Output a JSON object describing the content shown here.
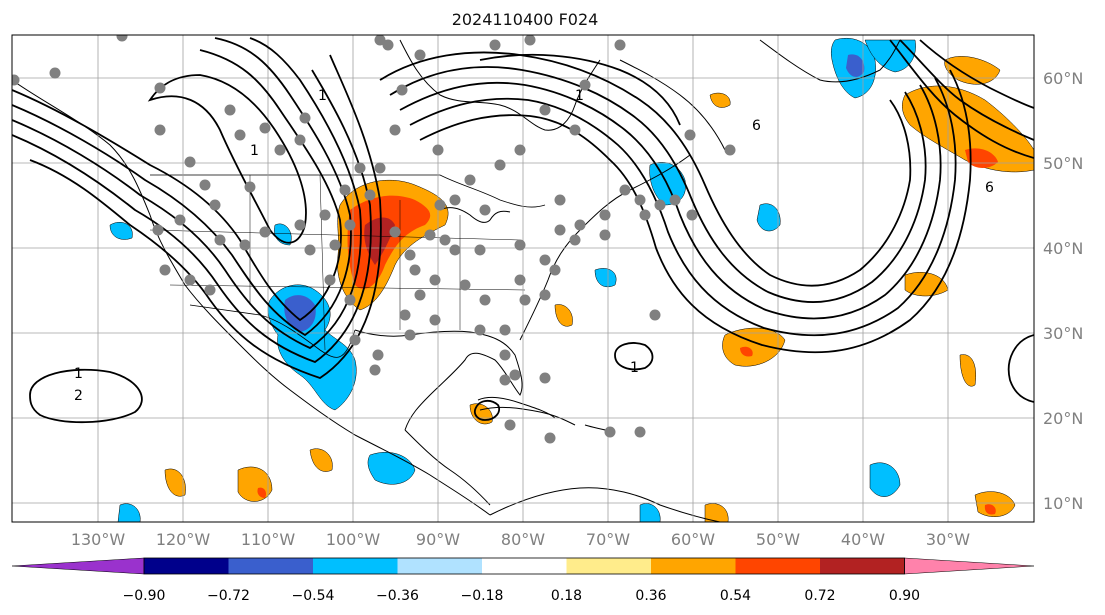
{
  "title": "2024110400 F024",
  "lon_labels": [
    "130°W",
    "120°W",
    "110°W",
    "100°W",
    "90°W",
    "80°W",
    "70°W",
    "60°W",
    "50°W",
    "40°W",
    "30°W"
  ],
  "lat_labels": [
    "60°N",
    "50°N",
    "40°N",
    "30°N",
    "20°N",
    "10°N"
  ],
  "contour_labels": [
    "1",
    "1",
    "1",
    "1",
    "2",
    "6",
    "1",
    "6"
  ],
  "colorbar": {
    "colors": [
      "#9a32cd",
      "#00008b",
      "#3a5fcd",
      "#00bfff",
      "#b0e2ff",
      "#ffffff",
      "#ffec8b",
      "#ffa500",
      "#ff4500",
      "#b22222",
      "#ff82ab"
    ],
    "ticks": [
      "−0.90",
      "−0.72",
      "−0.54",
      "−0.36",
      "−0.18",
      "0.18",
      "0.36",
      "0.54",
      "0.72",
      "0.90"
    ]
  },
  "colors": {
    "land_line": "#000000",
    "grid": "#a0a0a0",
    "station": "#808080",
    "label": "#808080"
  }
}
